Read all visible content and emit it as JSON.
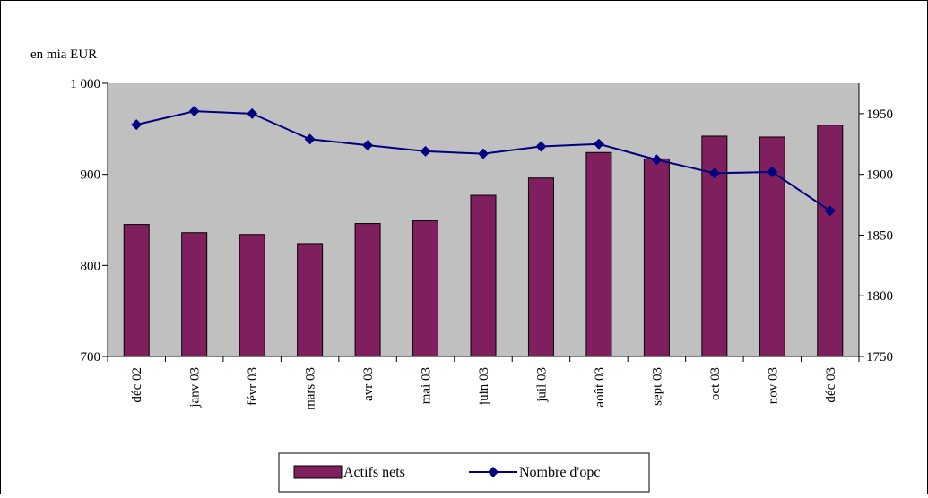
{
  "chart_data": {
    "type": "bar",
    "ylabel": "en mia EUR",
    "categories": [
      "déc 02",
      "janv 03",
      "févr 03",
      "mars 03",
      "avr 03",
      "mai 03",
      "juin 03",
      "juil 03",
      "août 03",
      "sept 03",
      "oct 03",
      "nov 03",
      "déc 03"
    ],
    "ylim": [
      700,
      1000
    ],
    "yticks": [
      "700",
      "800",
      "900",
      "1 000"
    ],
    "y2lim": [
      1750,
      1975
    ],
    "y2ticks": [
      "1750",
      "1800",
      "1850",
      "1900",
      "1950"
    ],
    "series": [
      {
        "name": "Actifs nets",
        "type": "bar",
        "axis": "left",
        "color": "#7f1f5e",
        "values": [
          845,
          836,
          834,
          824,
          846,
          849,
          877,
          896,
          924,
          917,
          942,
          941,
          954
        ]
      },
      {
        "name": "Nombre d'opc",
        "type": "line",
        "axis": "right",
        "color": "#000080",
        "marker": "diamond",
        "values": [
          1941,
          1952,
          1950,
          1929,
          1924,
          1919,
          1917,
          1923,
          1925,
          1912,
          1901,
          1902,
          1870
        ]
      }
    ],
    "plot_background": "#c0c0c0",
    "grid": false,
    "legend": "bottom"
  }
}
